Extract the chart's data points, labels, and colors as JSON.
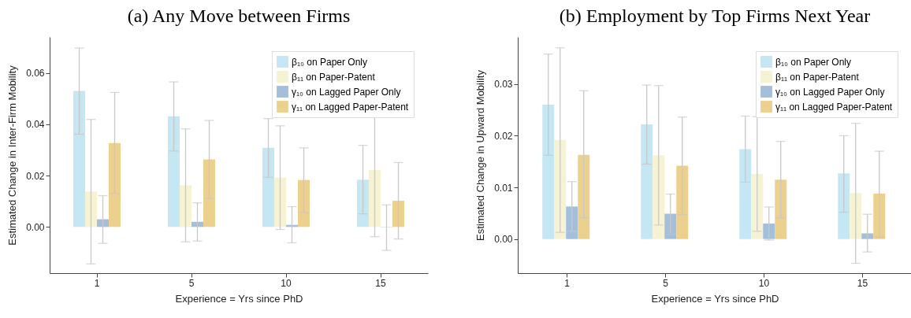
{
  "chart_data": [
    {
      "type": "bar",
      "title": "(a) Any Move between Firms",
      "xlabel": "Experience = Yrs since PhD",
      "ylabel": "Estimated Change in Inter-Firm Mobility",
      "categories": [
        "1",
        "5",
        "10",
        "15"
      ],
      "ylim": [
        -0.018,
        0.074
      ],
      "yticks": [
        {
          "value": 0,
          "label": "0.00"
        },
        {
          "value": 0.02,
          "label": "0.02"
        },
        {
          "value": 0.04,
          "label": "0.04"
        },
        {
          "value": 0.06,
          "label": "0.06"
        }
      ],
      "grid": false,
      "legend": "top right",
      "series": [
        {
          "name": "β₁₀ on Paper Only",
          "color": "#c5e6f3",
          "values": [
            0.053,
            0.0431,
            0.0308,
            0.0184
          ],
          "errors": [
            [
              0.0361,
              0.0697
            ],
            [
              0.0296,
              0.0565
            ],
            [
              0.0193,
              0.0422
            ],
            [
              0.0051,
              0.0318
            ]
          ]
        },
        {
          "name": "β₁₁ on Paper-Patent",
          "color": "#f6f2d4",
          "values": [
            0.0138,
            0.0162,
            0.0192,
            0.0222
          ],
          "errors": [
            [
              -0.0144,
              0.0419
            ],
            [
              -0.0058,
              0.0382
            ],
            [
              -0.001,
              0.0394
            ],
            [
              -0.0038,
              0.0483
            ]
          ]
        },
        {
          "name": "γ₁₀ on Lagged Paper Only",
          "color": "#a3bfdb",
          "values": [
            0.003,
            0.002,
            0.0008,
            -0.0001
          ],
          "errors": [
            [
              -0.0064,
              0.0122
            ],
            [
              -0.0055,
              0.0094
            ],
            [
              -0.0062,
              0.0079
            ],
            [
              -0.0091,
              0.0086
            ]
          ]
        },
        {
          "name": "γ₁₁ on Lagged Paper-Patent",
          "color": "#ecd08e",
          "values": [
            0.0327,
            0.0263,
            0.0183,
            0.0102
          ],
          "errors": [
            [
              0.013,
              0.0524
            ],
            [
              0.0111,
              0.0415
            ],
            [
              0.0056,
              0.0308
            ],
            [
              -0.0047,
              0.0251
            ]
          ]
        }
      ]
    },
    {
      "type": "bar",
      "title": "(b) Employment by Top Firms Next Year",
      "xlabel": "Experience = Yrs since PhD",
      "ylabel": "Estimated Change in Upward Mobility",
      "categories": [
        "1",
        "5",
        "10",
        "15"
      ],
      "ylim": [
        -0.0066,
        0.0391
      ],
      "yticks": [
        {
          "value": 0,
          "label": "0.00"
        },
        {
          "value": 0.01,
          "label": "0.01"
        },
        {
          "value": 0.02,
          "label": "0.02"
        },
        {
          "value": 0.03,
          "label": "0.03"
        }
      ],
      "grid": false,
      "legend": "top right",
      "series": [
        {
          "name": "β₁₀ on Paper Only",
          "color": "#c5e6f3",
          "values": [
            0.026,
            0.0222,
            0.0174,
            0.0127
          ],
          "errors": [
            [
              0.0162,
              0.0358
            ],
            [
              0.0145,
              0.0298
            ],
            [
              0.011,
              0.0238
            ],
            [
              0.0052,
              0.02
            ]
          ]
        },
        {
          "name": "β₁₁ on Paper-Patent",
          "color": "#f6f2d4",
          "values": [
            0.0192,
            0.0162,
            0.0126,
            0.0089
          ],
          "errors": [
            [
              0.0013,
              0.037
            ],
            [
              0.0027,
              0.0297
            ],
            [
              0.0015,
              0.0237
            ],
            [
              -0.0047,
              0.0224
            ]
          ]
        },
        {
          "name": "γ₁₀ on Lagged Paper Only",
          "color": "#a3bfdb",
          "values": [
            0.0063,
            0.0049,
            0.003,
            0.0011
          ],
          "errors": [
            [
              0.0015,
              0.0111
            ],
            [
              0.0009,
              0.0087
            ],
            [
              -0.0002,
              0.0062
            ],
            [
              -0.0025,
              0.0048
            ]
          ]
        },
        {
          "name": "γ₁₁ on Lagged Paper-Patent",
          "color": "#ecd08e",
          "values": [
            0.0163,
            0.0142,
            0.0115,
            0.0088
          ],
          "errors": [
            [
              0.0041,
              0.0287
            ],
            [
              0.0047,
              0.0236
            ],
            [
              0.0041,
              0.0189
            ],
            [
              0.0004,
              0.017
            ]
          ]
        }
      ]
    }
  ]
}
